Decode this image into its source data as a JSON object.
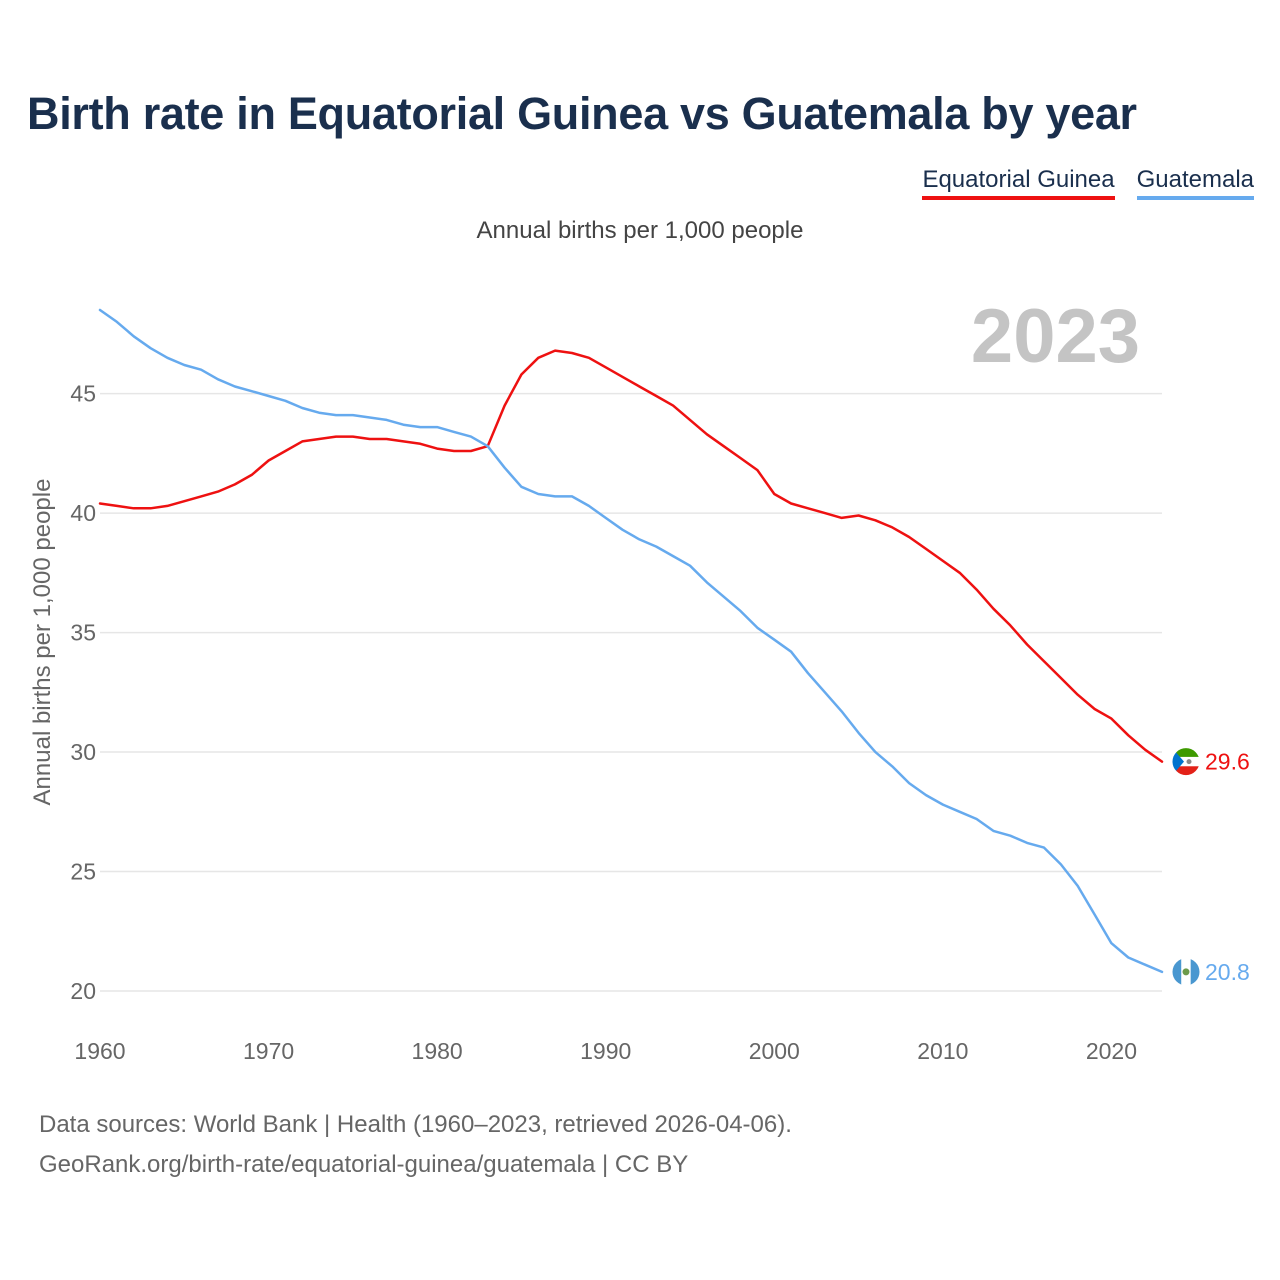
{
  "title": "Birth rate in Equatorial Guinea vs Guatemala by year",
  "legend": {
    "items": [
      "Equatorial Guinea",
      "Guatemala"
    ]
  },
  "subtitle": "Annual births per 1,000 people",
  "source": {
    "line1": "Data sources: World Bank | Health (1960–2023, retrieved 2026-04-06).",
    "line2": "GeoRank.org/birth-rate/equatorial-guinea/guatemala | CC BY"
  },
  "colors": {
    "eg": "#ee1111",
    "gt": "#66aaee",
    "title": "#1a2f4d",
    "year": "#c4c4c4"
  },
  "chart_data": {
    "type": "line",
    "title": "Birth rate in Equatorial Guinea vs Guatemala by year",
    "ylabel": "Annual births per 1,000 people",
    "xlabel": "",
    "year_label": "2023",
    "xlim": [
      1960,
      2023
    ],
    "ylim": [
      20,
      48.5
    ],
    "xticks": [
      1960,
      1970,
      1980,
      1990,
      2000,
      2010,
      2020
    ],
    "yticks": [
      20,
      25,
      30,
      35,
      40,
      45
    ],
    "grid": true,
    "legend_position": "top-right",
    "x": [
      1960,
      1961,
      1962,
      1963,
      1964,
      1965,
      1966,
      1967,
      1968,
      1969,
      1970,
      1971,
      1972,
      1973,
      1974,
      1975,
      1976,
      1977,
      1978,
      1979,
      1980,
      1981,
      1982,
      1983,
      1984,
      1985,
      1986,
      1987,
      1988,
      1989,
      1990,
      1991,
      1992,
      1993,
      1994,
      1995,
      1996,
      1997,
      1998,
      1999,
      2000,
      2001,
      2002,
      2003,
      2004,
      2005,
      2006,
      2007,
      2008,
      2009,
      2010,
      2011,
      2012,
      2013,
      2014,
      2015,
      2016,
      2017,
      2018,
      2019,
      2020,
      2021,
      2022,
      2023
    ],
    "series": [
      {
        "name": "Equatorial Guinea",
        "color": "#ee1111",
        "end_label": "29.6",
        "values": [
          40.4,
          40.3,
          40.2,
          40.2,
          40.3,
          40.5,
          40.7,
          40.9,
          41.2,
          41.6,
          42.2,
          42.6,
          43.0,
          43.1,
          43.2,
          43.2,
          43.1,
          43.1,
          43.0,
          42.9,
          42.7,
          42.6,
          42.6,
          42.8,
          44.5,
          45.8,
          46.5,
          46.8,
          46.7,
          46.5,
          46.1,
          45.7,
          45.3,
          44.9,
          44.5,
          43.9,
          43.3,
          42.8,
          42.3,
          41.8,
          40.8,
          40.4,
          40.2,
          40.0,
          39.8,
          39.9,
          39.7,
          39.4,
          39.0,
          38.5,
          38.0,
          37.5,
          36.8,
          36.0,
          35.3,
          34.5,
          33.8,
          33.1,
          32.4,
          31.8,
          31.4,
          30.7,
          30.1,
          29.6
        ]
      },
      {
        "name": "Guatemala",
        "color": "#66aaee",
        "end_label": "20.8",
        "values": [
          48.5,
          48.0,
          47.4,
          46.9,
          46.5,
          46.2,
          46.0,
          45.6,
          45.3,
          45.1,
          44.9,
          44.7,
          44.4,
          44.2,
          44.1,
          44.1,
          44.0,
          43.9,
          43.7,
          43.6,
          43.6,
          43.4,
          43.2,
          42.8,
          41.9,
          41.1,
          40.8,
          40.7,
          40.7,
          40.3,
          39.8,
          39.3,
          38.9,
          38.6,
          38.2,
          37.8,
          37.1,
          36.5,
          35.9,
          35.2,
          34.7,
          34.2,
          33.3,
          32.5,
          31.7,
          30.8,
          30.0,
          29.4,
          28.7,
          28.2,
          27.8,
          27.5,
          27.2,
          26.7,
          26.5,
          26.2,
          26.0,
          25.3,
          24.4,
          23.2,
          22.0,
          21.4,
          21.1,
          20.8
        ]
      }
    ]
  }
}
